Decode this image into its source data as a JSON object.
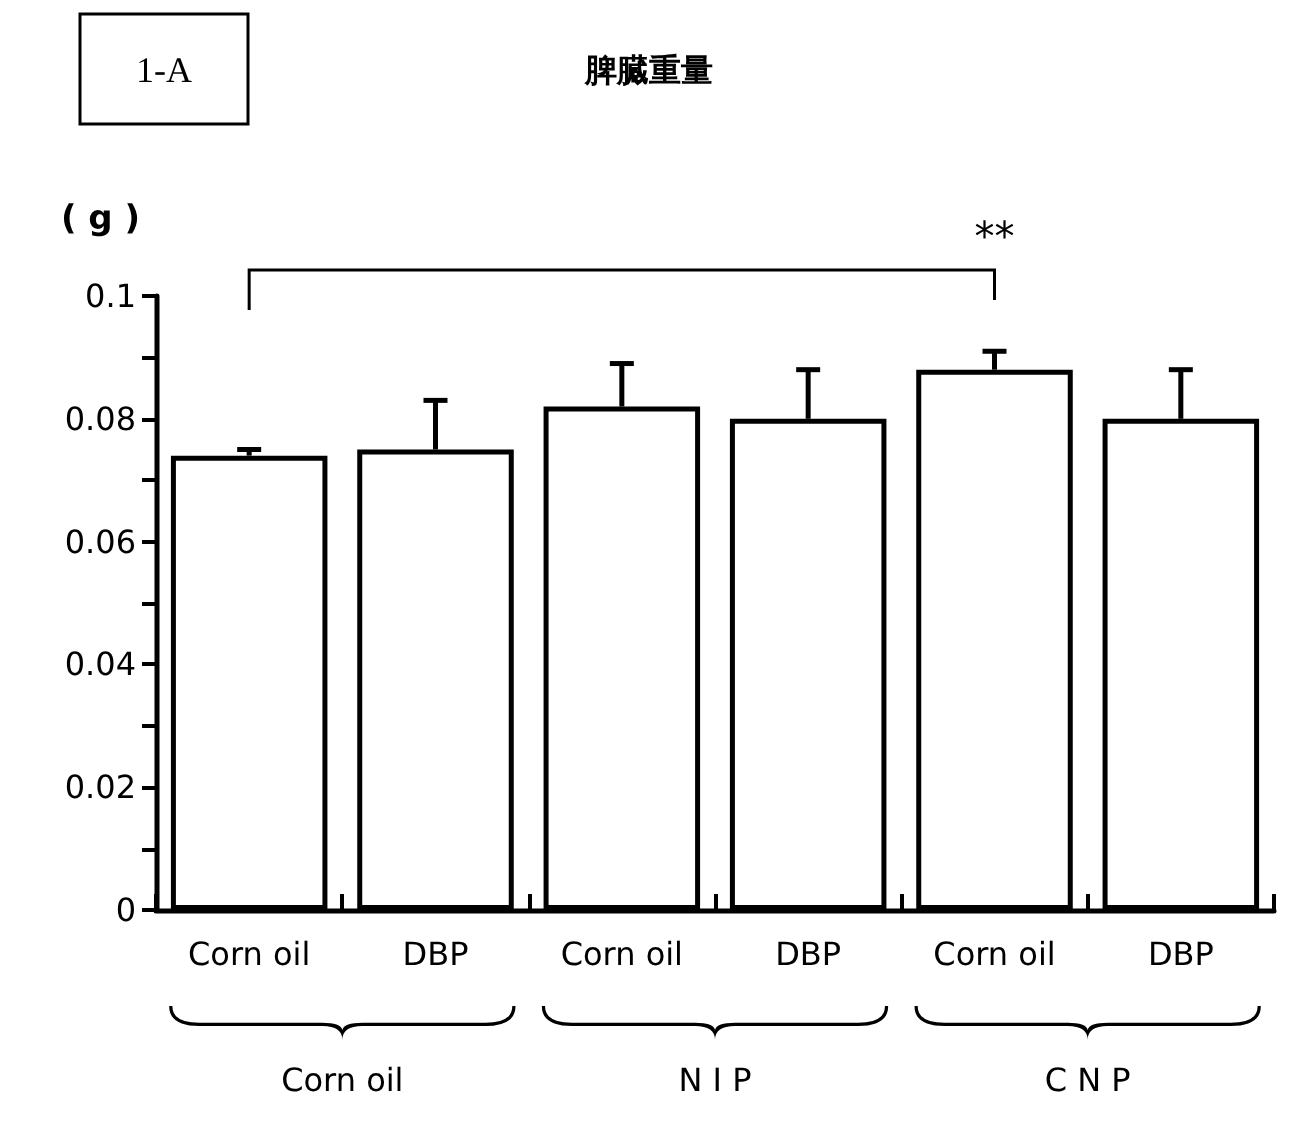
{
  "chart_data": {
    "type": "bar",
    "title": "脾臓重量",
    "ylabel": "( g )",
    "categories": [
      "Corn oil",
      "DBP",
      "Corn oil",
      "DBP",
      "Corn oil",
      "DBP"
    ],
    "values": [
      0.074,
      0.075,
      0.082,
      0.08,
      0.088,
      0.08
    ],
    "errors": [
      [
        0.074,
        0.075
      ],
      [
        0.075,
        0.083
      ],
      [
        0.082,
        0.089
      ],
      [
        0.08,
        0.088
      ],
      [
        0.088,
        0.091
      ],
      [
        0.08,
        0.088
      ]
    ],
    "color": "#ffffff",
    "ylim": [
      0,
      0.1
    ],
    "yticks": [
      0,
      {
        "value": 0.01,
        "label": null
      },
      0.02,
      {
        "value": 0.03,
        "label": null
      },
      0.04,
      {
        "value": 0.05,
        "label": null
      },
      0.06,
      {
        "value": 0.07,
        "label": null
      },
      0.08,
      {
        "value": 0.09,
        "label": null
      },
      0.1
    ],
    "annotations": [
      "1-A",
      "**",
      "Corn oil",
      "N I P",
      "C N P"
    ],
    "grid": false
  }
}
